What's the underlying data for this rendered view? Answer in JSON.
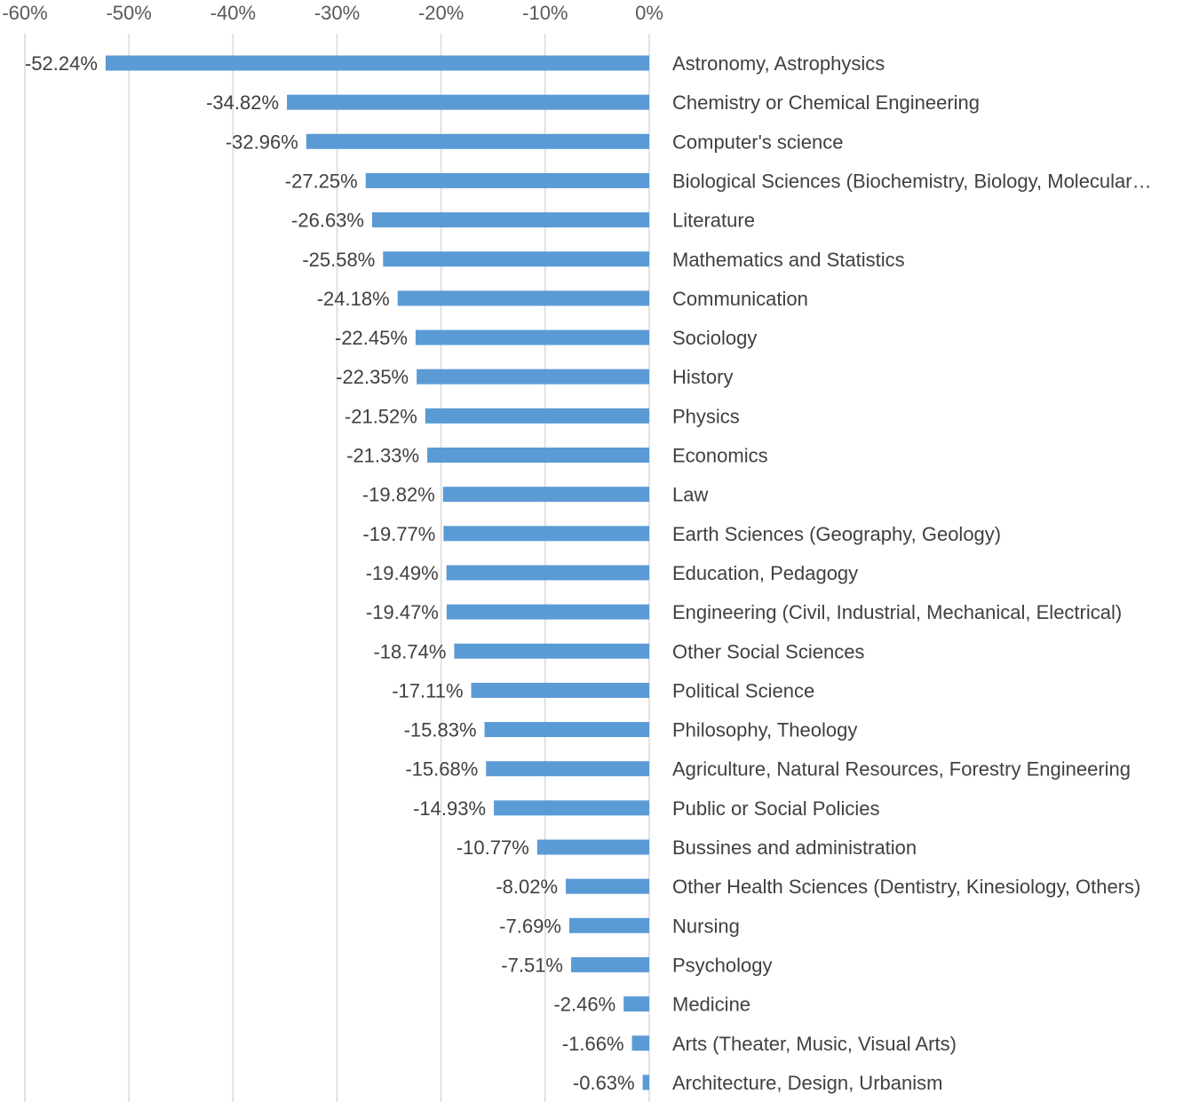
{
  "chart_data": {
    "type": "bar",
    "orientation": "horizontal",
    "title": "",
    "xlabel": "",
    "ylabel": "",
    "xlim": [
      -60,
      0
    ],
    "grid": true,
    "legend": "none",
    "tick_values": [
      -60,
      -50,
      -40,
      -30,
      -20,
      -10,
      0
    ],
    "tick_labels": [
      "-60%",
      "-50%",
      "-40%",
      "-30%",
      "-20%",
      "-10%",
      "0%"
    ],
    "bar_color": "#5b9bd5",
    "categories": [
      "Astronomy, Astrophysics",
      "Chemistry or Chemical Engineering",
      "Computer's science",
      "Biological Sciences (Biochemistry, Biology, Molecular…",
      "Literature",
      "Mathematics and Statistics",
      "Communication",
      "Sociology",
      "History",
      "Physics",
      "Economics",
      "Law",
      "Earth Sciences (Geography, Geology)",
      "Education, Pedagogy",
      "Engineering (Civil, Industrial, Mechanical, Electrical)",
      "Other Social Sciences",
      "Political Science",
      "Philosophy, Theology",
      "Agriculture, Natural Resources, Forestry Engineering",
      "Public or Social Policies",
      "Bussines and administration",
      "Other Health Sciences (Dentistry, Kinesiology, Others)",
      "Nursing",
      "Psychology",
      "Medicine",
      "Arts (Theater, Music, Visual Arts)",
      "Architecture, Design, Urbanism"
    ],
    "values": [
      -52.24,
      -34.82,
      -32.96,
      -27.25,
      -26.63,
      -25.58,
      -24.18,
      -22.45,
      -22.35,
      -21.52,
      -21.33,
      -19.82,
      -19.77,
      -19.49,
      -19.47,
      -18.74,
      -17.11,
      -15.83,
      -15.68,
      -14.93,
      -10.77,
      -8.02,
      -7.69,
      -7.51,
      -2.46,
      -1.66,
      -0.63
    ],
    "value_labels": [
      "-52.24%",
      "-34.82%",
      "-32.96%",
      "-27.25%",
      "-26.63%",
      "-25.58%",
      "-24.18%",
      "-22.45%",
      "-22.35%",
      "-21.52%",
      "-21.33%",
      "-19.82%",
      "-19.77%",
      "-19.49%",
      "-19.47%",
      "-18.74%",
      "-17.11%",
      "-15.83%",
      "-15.68%",
      "-14.93%",
      "-10.77%",
      "-8.02%",
      "-7.69%",
      "-7.51%",
      "-2.46%",
      "-1.66%",
      "-0.63%"
    ]
  }
}
